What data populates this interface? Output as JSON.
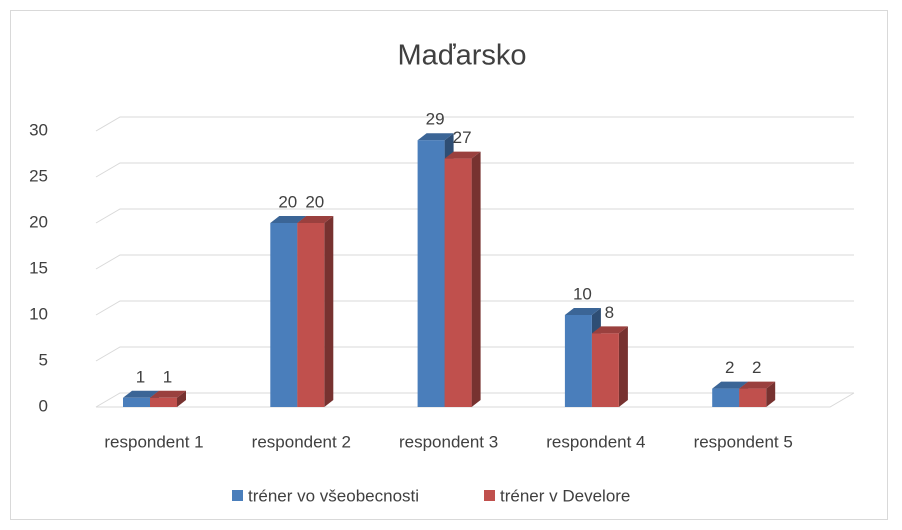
{
  "chart_data": {
    "type": "bar3d",
    "title": "Maďarsko",
    "categories": [
      "respondent 1",
      "respondent 2",
      "respondent 3",
      "respondent 4",
      "respondent 5"
    ],
    "series": [
      {
        "name": "tréner vo všeobecnosti",
        "color": "#4a7ebb",
        "values": [
          1,
          20,
          29,
          10,
          2
        ]
      },
      {
        "name": "tréner v Develore",
        "color": "#c0504d",
        "values": [
          1,
          20,
          27,
          8,
          2
        ]
      }
    ],
    "ylim": [
      0,
      30
    ],
    "yticks": [
      0,
      5,
      10,
      15,
      20,
      25,
      30
    ],
    "grid": true,
    "legend": "bottom"
  }
}
